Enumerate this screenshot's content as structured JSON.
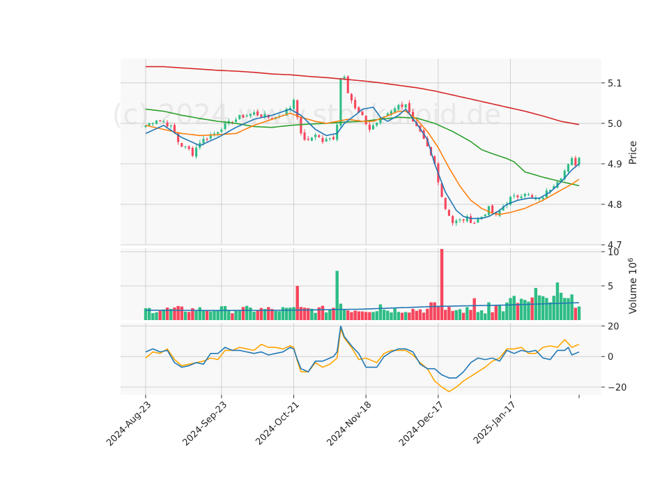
{
  "chart_data": {
    "type": "candlestick",
    "watermark": "(c) 2024 www.stockdroid.de",
    "colors": {
      "up": "#2ebd85",
      "down": "#f6465d",
      "ma_fast": "#1f77b4",
      "ma_mid": "#ff7f0e",
      "ma_slow": "#2ca02c",
      "ma_long": "#d62728",
      "osc_a": "#1f77b4",
      "osc_b": "#ffa500",
      "vol_ma": "#1f77b4",
      "panel_bg": "#f8f8f8",
      "grid": "#d0d0d0"
    },
    "x_ticks": [
      "2024-Aug-23",
      "2024-Sep-23",
      "2024-Oct-21",
      "2024-Nov-18",
      "2024-Dec-17",
      "2025-Jan-17"
    ],
    "x_tick_index": [
      0,
      21,
      41,
      61,
      81,
      101
    ],
    "n": 120,
    "price": {
      "ylabel": "Price",
      "ylim": [
        4.7,
        5.16
      ],
      "ticks": [
        "4.7",
        "4.8",
        "4.9",
        "5.0",
        "5.1"
      ],
      "tick_values": [
        4.7,
        4.8,
        4.9,
        5.0,
        5.1
      ],
      "anchors": [
        [
          0,
          4.995
        ],
        [
          3,
          5.01
        ],
        [
          5,
          5.005
        ],
        [
          7,
          4.99
        ],
        [
          8,
          4.975
        ],
        [
          9,
          4.955
        ],
        [
          10,
          4.945
        ],
        [
          12,
          4.935
        ],
        [
          13,
          4.925
        ],
        [
          15,
          4.955
        ],
        [
          17,
          4.965
        ],
        [
          19,
          4.975
        ],
        [
          21,
          4.99
        ],
        [
          23,
          5.0
        ],
        [
          26,
          5.015
        ],
        [
          28,
          5.02
        ],
        [
          30,
          5.025
        ],
        [
          32,
          5.02
        ],
        [
          34,
          5.015
        ],
        [
          36,
          5.015
        ],
        [
          38,
          5.025
        ],
        [
          40,
          5.04
        ],
        [
          41,
          5.06
        ],
        [
          42,
          5.02
        ],
        [
          43,
          4.97
        ],
        [
          45,
          4.955
        ],
        [
          47,
          4.975
        ],
        [
          49,
          4.955
        ],
        [
          52,
          4.965
        ],
        [
          53,
          5.0
        ],
        [
          54,
          5.11
        ],
        [
          55,
          5.12
        ],
        [
          56,
          5.08
        ],
        [
          58,
          5.035
        ],
        [
          60,
          5.015
        ],
        [
          61,
          5.0
        ],
        [
          62,
          4.985
        ],
        [
          63,
          4.995
        ],
        [
          65,
          5.01
        ],
        [
          67,
          5.025
        ],
        [
          69,
          5.04
        ],
        [
          71,
          5.045
        ],
        [
          72,
          5.05
        ],
        [
          74,
          5.0
        ],
        [
          76,
          4.975
        ],
        [
          78,
          4.94
        ],
        [
          80,
          4.9
        ],
        [
          81,
          4.86
        ],
        [
          82,
          4.82
        ],
        [
          83,
          4.79
        ],
        [
          84,
          4.775
        ],
        [
          85,
          4.755
        ],
        [
          87,
          4.76
        ],
        [
          89,
          4.765
        ],
        [
          91,
          4.755
        ],
        [
          93,
          4.77
        ],
        [
          95,
          4.79
        ],
        [
          97,
          4.77
        ],
        [
          99,
          4.795
        ],
        [
          101,
          4.815
        ],
        [
          103,
          4.82
        ],
        [
          105,
          4.83
        ],
        [
          107,
          4.815
        ],
        [
          109,
          4.81
        ],
        [
          111,
          4.83
        ],
        [
          113,
          4.85
        ],
        [
          115,
          4.87
        ],
        [
          117,
          4.895
        ],
        [
          118,
          4.91
        ],
        [
          119,
          4.9
        ],
        [
          120,
          4.915
        ]
      ],
      "ma_fast": [
        [
          0,
          4.975
        ],
        [
          5,
          4.995
        ],
        [
          10,
          4.965
        ],
        [
          15,
          4.945
        ],
        [
          20,
          4.965
        ],
        [
          25,
          4.99
        ],
        [
          30,
          5.01
        ],
        [
          35,
          5.02
        ],
        [
          40,
          5.035
        ],
        [
          43,
          5.02
        ],
        [
          47,
          4.985
        ],
        [
          50,
          4.97
        ],
        [
          53,
          4.975
        ],
        [
          55,
          5.0
        ],
        [
          58,
          5.02
        ],
        [
          60,
          5.035
        ],
        [
          63,
          5.04
        ],
        [
          65,
          5.015
        ],
        [
          67,
          5.005
        ],
        [
          70,
          5.02
        ],
        [
          72,
          5.035
        ],
        [
          75,
          5.0
        ],
        [
          78,
          4.96
        ],
        [
          80,
          4.9
        ],
        [
          83,
          4.83
        ],
        [
          86,
          4.785
        ],
        [
          88,
          4.77
        ],
        [
          90,
          4.765
        ],
        [
          93,
          4.765
        ],
        [
          95,
          4.77
        ],
        [
          98,
          4.785
        ],
        [
          100,
          4.8
        ],
        [
          103,
          4.81
        ],
        [
          106,
          4.815
        ],
        [
          109,
          4.815
        ],
        [
          112,
          4.83
        ],
        [
          115,
          4.855
        ],
        [
          118,
          4.885
        ],
        [
          120,
          4.9
        ]
      ],
      "ma_mid": [
        [
          0,
          4.995
        ],
        [
          5,
          4.985
        ],
        [
          10,
          4.975
        ],
        [
          15,
          4.97
        ],
        [
          20,
          4.972
        ],
        [
          25,
          4.975
        ],
        [
          30,
          4.995
        ],
        [
          35,
          5.01
        ],
        [
          40,
          5.025
        ],
        [
          43,
          5.015
        ],
        [
          47,
          5.005
        ],
        [
          50,
          5.0
        ],
        [
          53,
          5.005
        ],
        [
          56,
          5.01
        ],
        [
          60,
          5.005
        ],
        [
          63,
          5.005
        ],
        [
          66,
          5.015
        ],
        [
          70,
          5.03
        ],
        [
          72,
          5.03
        ],
        [
          75,
          5.01
        ],
        [
          78,
          4.98
        ],
        [
          81,
          4.94
        ],
        [
          84,
          4.89
        ],
        [
          87,
          4.845
        ],
        [
          90,
          4.81
        ],
        [
          93,
          4.79
        ],
        [
          96,
          4.778
        ],
        [
          98,
          4.775
        ],
        [
          101,
          4.78
        ],
        [
          105,
          4.79
        ],
        [
          110,
          4.81
        ],
        [
          115,
          4.835
        ],
        [
          118,
          4.85
        ],
        [
          120,
          4.862
        ]
      ],
      "ma_slow": [
        [
          0,
          5.035
        ],
        [
          5,
          5.03
        ],
        [
          10,
          5.02
        ],
        [
          15,
          5.012
        ],
        [
          20,
          5.005
        ],
        [
          25,
          5.0
        ],
        [
          30,
          4.992
        ],
        [
          35,
          4.99
        ],
        [
          40,
          4.995
        ],
        [
          45,
          4.998
        ],
        [
          50,
          5.0
        ],
        [
          55,
          5.003
        ],
        [
          60,
          5.005
        ],
        [
          65,
          5.01
        ],
        [
          70,
          5.015
        ],
        [
          75,
          5.013
        ],
        [
          80,
          5.0
        ],
        [
          85,
          4.98
        ],
        [
          90,
          4.955
        ],
        [
          93,
          4.935
        ],
        [
          96,
          4.925
        ],
        [
          100,
          4.913
        ],
        [
          102,
          4.905
        ],
        [
          105,
          4.88
        ],
        [
          110,
          4.867
        ],
        [
          115,
          4.856
        ],
        [
          120,
          4.846
        ]
      ],
      "ma_long": [
        [
          0,
          5.14
        ],
        [
          5,
          5.14
        ],
        [
          10,
          5.137
        ],
        [
          15,
          5.134
        ],
        [
          20,
          5.131
        ],
        [
          25,
          5.129
        ],
        [
          30,
          5.126
        ],
        [
          35,
          5.122
        ],
        [
          40,
          5.12
        ],
        [
          45,
          5.116
        ],
        [
          50,
          5.113
        ],
        [
          55,
          5.109
        ],
        [
          60,
          5.105
        ],
        [
          65,
          5.1
        ],
        [
          70,
          5.094
        ],
        [
          75,
          5.088
        ],
        [
          80,
          5.08
        ],
        [
          85,
          5.07
        ],
        [
          90,
          5.06
        ],
        [
          95,
          5.05
        ],
        [
          100,
          5.04
        ],
        [
          105,
          5.03
        ],
        [
          110,
          5.018
        ],
        [
          115,
          5.005
        ],
        [
          120,
          4.997
        ]
      ]
    },
    "volume": {
      "ylabel": "Volume  10",
      "exponent": "6",
      "ylim": [
        0,
        10.5
      ],
      "ticks": [
        "5",
        "10"
      ],
      "tick_values": [
        5,
        10
      ],
      "spikes": [
        [
          20,
          1.5
        ],
        [
          23,
          1.5
        ],
        [
          37,
          1.3
        ],
        [
          39,
          1.8
        ],
        [
          41,
          1.9
        ],
        [
          42,
          5.0
        ],
        [
          52,
          1.8
        ],
        [
          53,
          7.2
        ],
        [
          54,
          2.4
        ],
        [
          65,
          2.3
        ],
        [
          79,
          2.6
        ],
        [
          80,
          2.6
        ],
        [
          82,
          10.4
        ],
        [
          83,
          1.5
        ],
        [
          91,
          3.2
        ],
        [
          95,
          2.6
        ],
        [
          106,
          2.7
        ],
        [
          108,
          4.7
        ],
        [
          110,
          3.5
        ],
        [
          114,
          5.5
        ],
        [
          115,
          4.0
        ]
      ],
      "ma": [
        [
          0,
          1.45
        ],
        [
          20,
          1.4
        ],
        [
          40,
          1.45
        ],
        [
          60,
          1.6
        ],
        [
          80,
          2.0
        ],
        [
          100,
          2.2
        ],
        [
          120,
          2.55
        ]
      ]
    },
    "oscillator": {
      "ylim": [
        -25,
        22
      ],
      "ticks": [
        "−20",
        "0",
        "20"
      ],
      "tick_values": [
        -20,
        0,
        20
      ],
      "line_a": [
        [
          0,
          3
        ],
        [
          2,
          5
        ],
        [
          4,
          3
        ],
        [
          6,
          4
        ],
        [
          8,
          -4
        ],
        [
          10,
          -7
        ],
        [
          12,
          -6
        ],
        [
          14,
          -4
        ],
        [
          16,
          -5
        ],
        [
          18,
          2
        ],
        [
          20,
          2
        ],
        [
          22,
          6
        ],
        [
          24,
          4
        ],
        [
          26,
          4
        ],
        [
          28,
          3
        ],
        [
          30,
          2
        ],
        [
          32,
          3
        ],
        [
          34,
          1
        ],
        [
          36,
          2
        ],
        [
          38,
          3
        ],
        [
          40,
          6
        ],
        [
          41,
          5
        ],
        [
          42,
          -2
        ],
        [
          43,
          -8
        ],
        [
          45,
          -10
        ],
        [
          47,
          -3
        ],
        [
          49,
          -3
        ],
        [
          51,
          -1
        ],
        [
          52,
          0
        ],
        [
          53,
          3
        ],
        [
          54,
          20
        ],
        [
          55,
          13
        ],
        [
          57,
          7
        ],
        [
          59,
          2
        ],
        [
          61,
          -7
        ],
        [
          64,
          -7
        ],
        [
          66,
          0
        ],
        [
          68,
          3
        ],
        [
          70,
          5
        ],
        [
          72,
          5
        ],
        [
          74,
          3
        ],
        [
          76,
          -5
        ],
        [
          78,
          -8
        ],
        [
          80,
          -8
        ],
        [
          82,
          -12
        ],
        [
          84,
          -14
        ],
        [
          86,
          -14
        ],
        [
          88,
          -10
        ],
        [
          90,
          -4
        ],
        [
          92,
          -1
        ],
        [
          94,
          -2
        ],
        [
          96,
          -1
        ],
        [
          98,
          -3
        ],
        [
          100,
          4
        ],
        [
          102,
          2
        ],
        [
          104,
          4
        ],
        [
          106,
          3
        ],
        [
          108,
          4
        ],
        [
          110,
          -1
        ],
        [
          112,
          -2
        ],
        [
          114,
          4
        ],
        [
          116,
          4
        ],
        [
          117,
          6
        ],
        [
          118,
          1
        ],
        [
          120,
          3
        ]
      ],
      "line_b": [
        [
          0,
          -1
        ],
        [
          2,
          3
        ],
        [
          4,
          2
        ],
        [
          6,
          5
        ],
        [
          8,
          -2
        ],
        [
          10,
          -6
        ],
        [
          12,
          -5
        ],
        [
          14,
          -4
        ],
        [
          16,
          -3
        ],
        [
          18,
          -1
        ],
        [
          20,
          -2
        ],
        [
          22,
          4
        ],
        [
          24,
          4
        ],
        [
          26,
          6
        ],
        [
          28,
          5
        ],
        [
          30,
          4
        ],
        [
          32,
          8
        ],
        [
          34,
          6
        ],
        [
          36,
          6
        ],
        [
          38,
          5
        ],
        [
          40,
          7
        ],
        [
          41,
          6
        ],
        [
          42,
          -3
        ],
        [
          43,
          -10
        ],
        [
          45,
          -10
        ],
        [
          47,
          -4
        ],
        [
          49,
          -7
        ],
        [
          51,
          -5
        ],
        [
          53,
          -1
        ],
        [
          54,
          18
        ],
        [
          55,
          12
        ],
        [
          57,
          6
        ],
        [
          59,
          -2
        ],
        [
          61,
          -1
        ],
        [
          64,
          -4
        ],
        [
          66,
          2
        ],
        [
          68,
          4
        ],
        [
          70,
          4
        ],
        [
          72,
          4
        ],
        [
          74,
          1
        ],
        [
          76,
          -4
        ],
        [
          78,
          -8
        ],
        [
          80,
          -16
        ],
        [
          82,
          -20
        ],
        [
          84,
          -23
        ],
        [
          86,
          -20
        ],
        [
          88,
          -16
        ],
        [
          90,
          -13
        ],
        [
          92,
          -10
        ],
        [
          94,
          -7
        ],
        [
          96,
          -3
        ],
        [
          98,
          -1
        ],
        [
          100,
          5
        ],
        [
          102,
          5
        ],
        [
          104,
          6
        ],
        [
          106,
          2
        ],
        [
          108,
          2
        ],
        [
          110,
          6
        ],
        [
          112,
          7
        ],
        [
          114,
          6
        ],
        [
          116,
          11
        ],
        [
          118,
          6
        ],
        [
          120,
          8
        ]
      ]
    }
  }
}
